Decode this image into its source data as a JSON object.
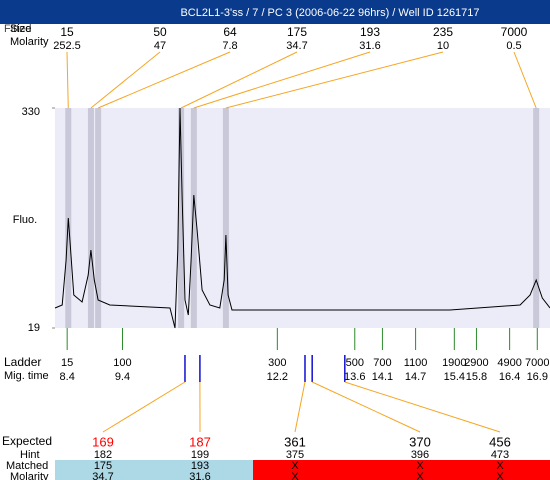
{
  "header": {
    "title": "BCL2L1-3'ss / 7 / PC 3 (2006-06-22 96hrs) / Well ID 1261717"
  },
  "peaks": {
    "fitted_label": "Fitted",
    "size_label": "Size",
    "molarity_label": "Molarity",
    "sizes": [
      15,
      50,
      64,
      175,
      193,
      235,
      7000
    ],
    "molarities": [
      252.5,
      47,
      7.8,
      34.7,
      31.6,
      10,
      0.5
    ],
    "times": [
      8.42,
      8.83,
      8.96,
      10.46,
      10.69,
      11.27,
      16.88
    ]
  },
  "fluo": {
    "label": "Fluo.",
    "ylim": [
      19,
      330
    ],
    "yticks": [
      330,
      19
    ],
    "xlim": [
      8.18,
      17.13
    ],
    "trace": {
      "x": [
        8.18,
        8.31,
        8.38,
        8.42,
        8.45,
        8.52,
        8.67,
        8.78,
        8.83,
        8.89,
        8.96,
        9.17,
        10.26,
        10.35,
        10.4,
        10.44,
        10.48,
        10.53,
        10.59,
        10.64,
        10.69,
        10.75,
        10.84,
        10.98,
        11.16,
        11.24,
        11.27,
        11.31,
        11.38,
        12.61,
        15.32,
        16.59,
        16.77,
        16.88,
        16.99,
        17.13
      ],
      "y": [
        47.3,
        51.5,
        115.1,
        174.5,
        143.4,
        65.6,
        55.8,
        93.9,
        129.3,
        86.9,
        58.6,
        51.5,
        47.3,
        19,
        129.3,
        330,
        199.9,
        58.6,
        37.4,
        115.1,
        207,
        157.5,
        72.7,
        51.5,
        47.3,
        86.9,
        150.5,
        65.6,
        44.4,
        44.4,
        44.4,
        51.5,
        65.6,
        86.9,
        61.4,
        47.3
      ]
    }
  },
  "ladder": {
    "label": "Ladder",
    "time_label": "Mig. time",
    "sizes": [
      15,
      100,
      300,
      500,
      700,
      1100,
      1900,
      2900,
      4900,
      7000
    ],
    "times": [
      8.4,
      9.4,
      12.2,
      13.6,
      14.1,
      14.7,
      15.4,
      15.8,
      16.4,
      16.9
    ]
  },
  "matches": {
    "expected_label": "Expected",
    "hint_label": "Hint",
    "matched_label": "Matched",
    "molarity_label": "Molarity",
    "marker_times": [
      10.53,
      10.8,
      12.7,
      12.83,
      13.42
    ],
    "columns": [
      {
        "expected": 169,
        "hint": 182,
        "matched": 175,
        "molarity": 34.7,
        "expected_color": "#ff0000",
        "bg": "#add8e6"
      },
      {
        "expected": 187,
        "hint": 199,
        "matched": 193,
        "molarity": 31.6,
        "expected_color": "#ff0000",
        "bg": "#add8e6"
      },
      {
        "expected": 361,
        "hint": 375,
        "matched": "X",
        "molarity": "X",
        "expected_color": "#000000",
        "bg": "#ff0000"
      },
      {
        "expected": 370,
        "hint": 396,
        "matched": "X",
        "molarity": "X",
        "expected_color": "#000000",
        "bg": "#ff0000"
      },
      {
        "expected": 456,
        "hint": 473,
        "matched": "X",
        "molarity": "X",
        "expected_color": "#000000",
        "bg": "#ff0000"
      }
    ]
  }
}
